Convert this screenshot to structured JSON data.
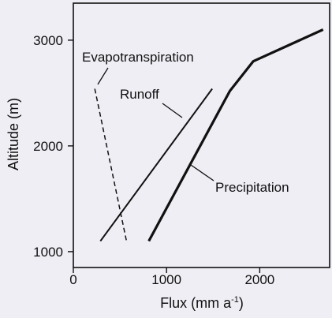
{
  "chart_data": {
    "type": "line",
    "xlabel": "Flux (mm a",
    "xlabel_sup": "-1",
    "xlabel_close": ")",
    "ylabel": "Altitude (m)",
    "xlim": [
      0,
      2750
    ],
    "ylim": [
      850,
      3350
    ],
    "x_ticks": [
      {
        "value": 0,
        "label": "0"
      },
      {
        "value": 1000,
        "label": "1000"
      },
      {
        "value": 2000,
        "label": "2000"
      }
    ],
    "y_ticks": [
      {
        "value": 1000,
        "label": "1000"
      },
      {
        "value": 2000,
        "label": "2000"
      },
      {
        "value": 3000,
        "label": "3000"
      }
    ],
    "grid": false,
    "legend": "none",
    "series": [
      {
        "name": "Precipitation",
        "style": "solid-thick",
        "points": [
          [
            810,
            1100
          ],
          [
            1680,
            2520
          ],
          [
            1930,
            2800
          ],
          [
            2680,
            3100
          ]
        ]
      },
      {
        "name": "Runoff",
        "style": "solid",
        "points": [
          [
            290,
            1100
          ],
          [
            1490,
            2540
          ]
        ]
      },
      {
        "name": "Evapotranspiration",
        "style": "dashed",
        "points": [
          [
            230,
            2540
          ],
          [
            570,
            1100
          ]
        ]
      }
    ]
  }
}
